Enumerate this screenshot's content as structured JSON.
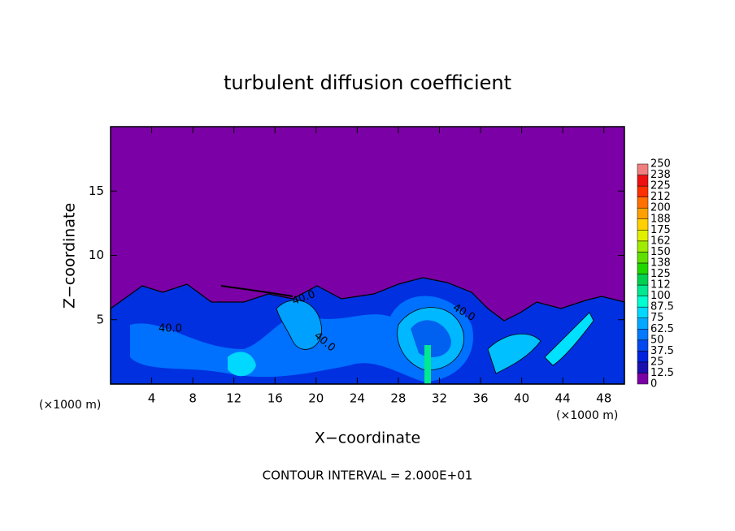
{
  "chart_data": {
    "type": "contour",
    "title": "turbulent diffusion coefficient",
    "xlabel": "X−coordinate",
    "ylabel": "Z−coordinate",
    "xunit": "(×1000 m)",
    "footer": "CONTOUR INTERVAL = 2.000E+01",
    "xlim": [
      0,
      50
    ],
    "xticks": [
      4,
      8,
      12,
      16,
      20,
      24,
      28,
      32,
      36,
      40,
      44,
      48
    ],
    "ylim": [
      0,
      20
    ],
    "yticks": [
      5,
      10,
      15
    ],
    "contour_labels": [
      "40.0",
      "40.0",
      "40.0",
      "40.0"
    ],
    "colorbar": {
      "levels": [
        0,
        12.5,
        25,
        37.5,
        50,
        62.5,
        75,
        87.5,
        100,
        112,
        125,
        138,
        150,
        162,
        175,
        188,
        200,
        212,
        225,
        238,
        250
      ],
      "colors": [
        "#7b00a5",
        "#1a10b0",
        "#0022dd",
        "#0048f0",
        "#0078ff",
        "#00a8ff",
        "#00d8ff",
        "#00ffd0",
        "#00e890",
        "#00d050",
        "#20d800",
        "#60e000",
        "#a0ec00",
        "#e0f000",
        "#ffd000",
        "#ffa000",
        "#ff7000",
        "#ff3000",
        "#ee1010",
        "#f08080"
      ]
    }
  }
}
